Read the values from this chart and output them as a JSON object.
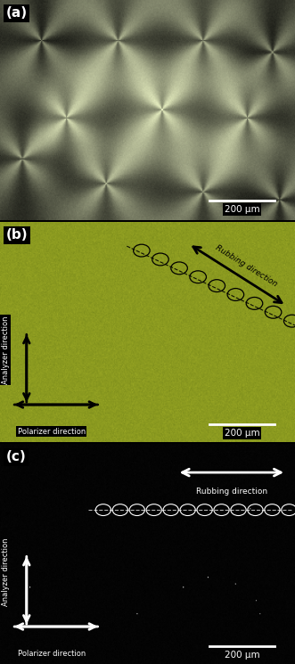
{
  "panel_a_label": "(a)",
  "panel_b_label": "(b)",
  "panel_c_label": "(c)",
  "panel_b_color": [
    0.545,
    0.604,
    0.125
  ],
  "scale_bar_text": "200 μm",
  "analyzer_text": "Analyzer direction",
  "polarizer_text": "Polarizer direction",
  "rubbing_text": "Rubbing direction",
  "fig_width": 3.31,
  "fig_height": 7.45
}
